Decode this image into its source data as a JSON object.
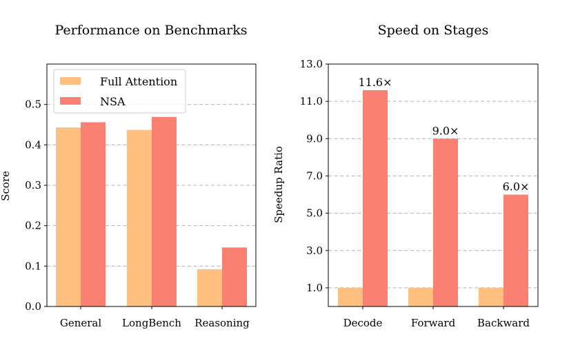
{
  "colors": {
    "full_attention": "#FFBF7F",
    "nsa": "#FA8072",
    "grid": "#b0b0b0",
    "legend_border": "#cccccc"
  },
  "chart_data": [
    {
      "type": "bar",
      "title": "Performance on Benchmarks",
      "xlabel": "",
      "ylabel": "Score",
      "ylim": [
        0,
        0.6
      ],
      "yticks": [
        "0.0",
        "0.1",
        "0.2",
        "0.3",
        "0.4",
        "0.5"
      ],
      "ytick_values": [
        0,
        0.1,
        0.2,
        0.3,
        0.4,
        0.5
      ],
      "grid": true,
      "legend": "top-left",
      "categories": [
        "General",
        "LongBench",
        "Reasoning"
      ],
      "series": [
        {
          "name": "Full Attention",
          "values": [
            0.443,
            0.437,
            0.092
          ]
        },
        {
          "name": "NSA",
          "values": [
            0.456,
            0.469,
            0.146
          ]
        }
      ]
    },
    {
      "type": "bar",
      "title": "Speed on Stages",
      "xlabel": "",
      "ylabel": "Speedup Ratio",
      "ylim": [
        0,
        13
      ],
      "yticks": [
        "1.0",
        "3.0",
        "5.0",
        "7.0",
        "9.0",
        "11.0",
        "13.0"
      ],
      "ytick_values": [
        1,
        3,
        5,
        7,
        9,
        11,
        13
      ],
      "grid": true,
      "categories": [
        "Decode",
        "Forward",
        "Backward"
      ],
      "series": [
        {
          "name": "Full Attention",
          "values": [
            1.0,
            1.0,
            1.0
          ]
        },
        {
          "name": "NSA",
          "values": [
            11.6,
            9.0,
            6.0
          ]
        }
      ],
      "data_labels": [
        "11.6×",
        "9.0×",
        "6.0×"
      ]
    }
  ]
}
